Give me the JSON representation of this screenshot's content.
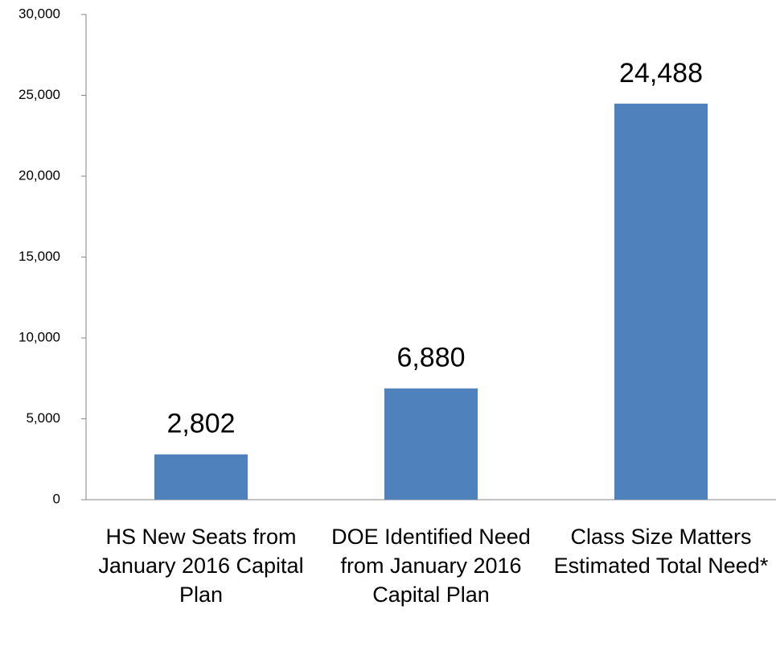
{
  "chart_data": {
    "type": "bar",
    "categories": [
      "HS New Seats from January 2016 Capital Plan",
      "DOE Identified Need from January 2016 Capital Plan",
      "Class Size Matters Estimated Total Need*"
    ],
    "values": [
      2802,
      6880,
      24488
    ],
    "value_labels": [
      "2,802",
      "6,880",
      "24,488"
    ],
    "color": "#4f81bd",
    "ylim": [
      0,
      30000
    ],
    "yticks": [
      0,
      {
        "value": 5000,
        "label": "5,000"
      },
      {
        "value": 10000,
        "label": "10,000"
      },
      {
        "value": 15000,
        "label": "15,000"
      },
      {
        "value": 20000,
        "label": "20,000"
      },
      {
        "value": 25000,
        "label": "25,000"
      },
      {
        "value": 30000,
        "label": "30,000"
      }
    ],
    "grid": false
  }
}
